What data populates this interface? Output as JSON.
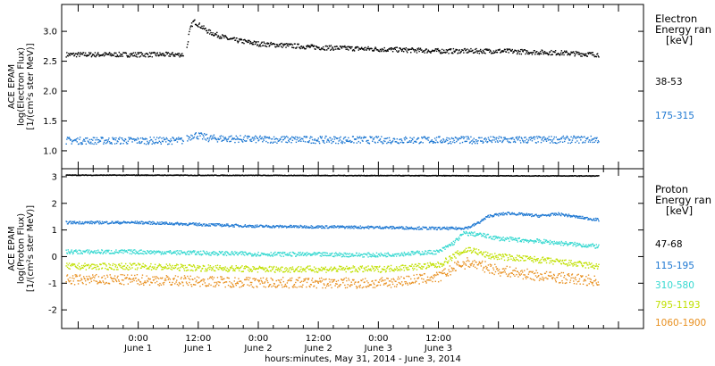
{
  "chart_data": [
    {
      "type": "scatter",
      "panel": "electron",
      "ylabel": [
        "ACE EPAM",
        "log(Electron Flux)",
        "[1/(cm²s ster MeV)]"
      ],
      "ylim": [
        0.7,
        3.45
      ],
      "yticks": [
        1.0,
        1.5,
        2.0,
        2.5,
        3.0
      ],
      "ytick_labels": [
        "1.0",
        "1.5",
        "2.0",
        "2.5",
        "3.0"
      ],
      "legend_title": [
        "Electron",
        "Energy ran",
        "[keV]"
      ],
      "series": [
        {
          "name": "38-53",
          "color": "#000000",
          "points": [
            [
              0,
              2.62
            ],
            [
              6,
              2.62
            ],
            [
              9,
              2.62
            ],
            [
              9.5,
              2.66
            ],
            [
              10,
              2.95
            ],
            [
              10.5,
              3.1
            ],
            [
              11,
              3.18
            ],
            [
              12,
              3.12
            ],
            [
              14,
              3.0
            ],
            [
              18,
              2.88
            ],
            [
              24,
              2.8
            ],
            [
              36,
              2.74
            ],
            [
              48,
              2.71
            ],
            [
              60,
              2.68
            ],
            [
              72,
              2.68
            ],
            [
              84,
              2.65
            ],
            [
              92,
              2.62
            ]
          ],
          "noise": 0.04
        },
        {
          "name": "175-315",
          "color": "#1e78d2",
          "points": [
            [
              0,
              1.18
            ],
            [
              9,
              1.18
            ],
            [
              11,
              1.28
            ],
            [
              14,
              1.22
            ],
            [
              24,
              1.2
            ],
            [
              48,
              1.19
            ],
            [
              72,
              1.19
            ],
            [
              92,
              1.2
            ]
          ],
          "noise": 0.06
        }
      ]
    },
    {
      "type": "scatter",
      "panel": "proton",
      "ylabel": [
        "ACE EPAM",
        "log(Proton Flux)",
        "[1/(cm²s ster MeV)]"
      ],
      "ylim": [
        -2.7,
        3.3
      ],
      "yticks": [
        -2,
        -1,
        0,
        1,
        2,
        3
      ],
      "ytick_labels": [
        "-2",
        "-1",
        "0",
        "1",
        "2",
        "3"
      ],
      "legend_title": [
        "Proton",
        "Energy ran",
        "[keV]"
      ],
      "series": [
        {
          "name": "47-68",
          "color": "#000000",
          "points": [
            [
              0,
              3.08
            ],
            [
              92,
              3.05
            ]
          ],
          "noise": 0.012
        },
        {
          "name": "115-195",
          "color": "#1e78d2",
          "points": [
            [
              0,
              1.3
            ],
            [
              24,
              1.16
            ],
            [
              48,
              1.12
            ],
            [
              60,
              1.08
            ],
            [
              64,
              1.08
            ],
            [
              66,
              1.12
            ],
            [
              68,
              1.3
            ],
            [
              70,
              1.55
            ],
            [
              74,
              1.65
            ],
            [
              80,
              1.55
            ],
            [
              84,
              1.62
            ],
            [
              88,
              1.5
            ],
            [
              92,
              1.4
            ]
          ],
          "noise": 0.05
        },
        {
          "name": "310-580",
          "color": "#34d8d0",
          "points": [
            [
              0,
              0.2
            ],
            [
              24,
              0.12
            ],
            [
              48,
              0.08
            ],
            [
              60,
              0.2
            ],
            [
              63,
              0.55
            ],
            [
              65,
              0.9
            ],
            [
              68,
              0.85
            ],
            [
              72,
              0.7
            ],
            [
              80,
              0.6
            ],
            [
              92,
              0.4
            ]
          ],
          "noise": 0.08
        },
        {
          "name": "795-1193",
          "color": "#c0e000",
          "points": [
            [
              0,
              -0.35
            ],
            [
              24,
              -0.45
            ],
            [
              48,
              -0.45
            ],
            [
              60,
              -0.3
            ],
            [
              64,
              0.15
            ],
            [
              66,
              0.3
            ],
            [
              70,
              0.05
            ],
            [
              80,
              -0.1
            ],
            [
              92,
              -0.35
            ]
          ],
          "noise": 0.12
        },
        {
          "name": "1060-1900",
          "color": "#e89020",
          "points": [
            [
              0,
              -0.85
            ],
            [
              24,
              -0.95
            ],
            [
              48,
              -0.98
            ],
            [
              60,
              -0.75
            ],
            [
              64,
              -0.3
            ],
            [
              66,
              -0.2
            ],
            [
              72,
              -0.5
            ],
            [
              80,
              -0.7
            ],
            [
              92,
              -0.9
            ]
          ],
          "noise": 0.2
        }
      ]
    }
  ],
  "x_axis": {
    "range_hours": [
      -15.3,
      101
    ],
    "major_ticks": [
      {
        "hour": 0,
        "time": "0:00",
        "date": "June 1"
      },
      {
        "hour": 12,
        "time": "12:00",
        "date": "June 1"
      },
      {
        "hour": 24,
        "time": "0:00",
        "date": "June 2"
      },
      {
        "hour": 36,
        "time": "12:00",
        "date": "June 2"
      },
      {
        "hour": 48,
        "time": "0:00",
        "date": "June 3"
      },
      {
        "hour": 60,
        "time": "12:00",
        "date": "June 3"
      }
    ],
    "title": "hours:minutes, May 31, 2014 - June  3, 2014"
  }
}
